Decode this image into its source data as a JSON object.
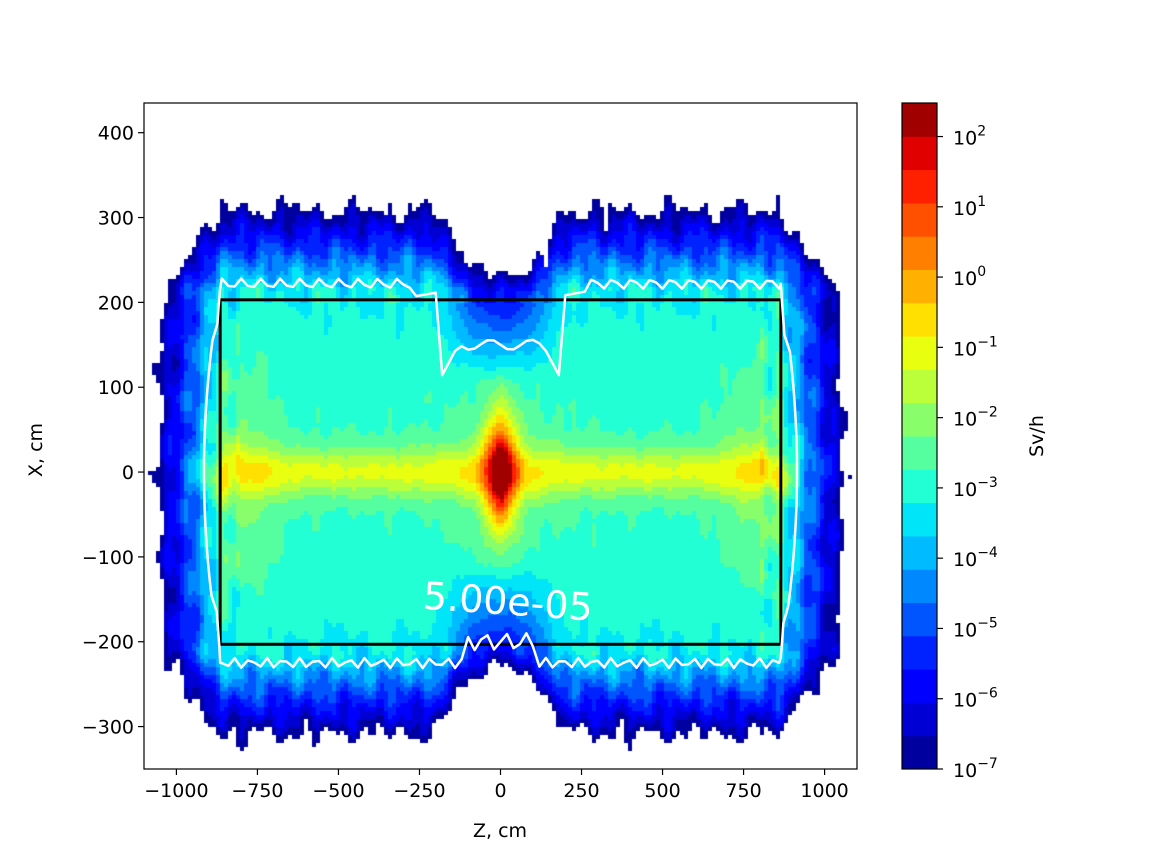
{
  "chart_data": {
    "type": "heatmap",
    "subtype": "filled-contour",
    "title": "",
    "xlabel": "Z, cm",
    "ylabel": "X, cm",
    "xlim": [
      -1100,
      1100
    ],
    "ylim": [
      -350,
      435
    ],
    "xticks": [
      -1000,
      -750,
      -500,
      -250,
      0,
      250,
      500,
      750,
      1000
    ],
    "xtick_labels": [
      "−1000",
      "−750",
      "−500",
      "−250",
      "0",
      "250",
      "500",
      "750",
      "1000"
    ],
    "yticks": [
      -300,
      -200,
      -100,
      0,
      100,
      200,
      300,
      400
    ],
    "ytick_labels": [
      "−300",
      "−200",
      "−100",
      "0",
      "100",
      "200",
      "300",
      "400"
    ],
    "colormap": "jet",
    "scale": "log",
    "colorbar": {
      "label": "Sv/h",
      "range": [
        1e-07,
        300
      ],
      "ticks": [
        1e-07,
        1e-06,
        1e-05,
        0.0001,
        0.001,
        0.01,
        0.1,
        1,
        10,
        100
      ],
      "tick_bases": [
        "10",
        "10",
        "10",
        "10",
        "10",
        "10",
        "10",
        "10",
        "10",
        "10"
      ],
      "tick_exponents": [
        "−7",
        "−6",
        "−5",
        "−4",
        "−3",
        "−2",
        "−1",
        "0",
        "1",
        "2"
      ],
      "levels": 19,
      "colors": [
        "#00009f",
        "#0000d5",
        "#0000ff",
        "#0022ff",
        "#0055ff",
        "#0088ff",
        "#00bbff",
        "#00e5f8",
        "#22ffd5",
        "#55ff9f",
        "#88ff6a",
        "#bbff3a",
        "#e8ff10",
        "#ffe000",
        "#ffb000",
        "#ff8000",
        "#ff5000",
        "#ff2000",
        "#e00000",
        "#a00000"
      ]
    },
    "rectangle": {
      "z": [
        -865,
        865
      ],
      "x": [
        -203,
        203
      ],
      "color": "#000000"
    },
    "contour_line": {
      "level": 5e-05,
      "label": "5.00e-05",
      "color": "#ffffff"
    },
    "field": {
      "blue_extent_z": 1090,
      "base_half_height_x": 300,
      "beam_half_width_x": 28,
      "peak_location": [
        0,
        0
      ],
      "peak_value": 200
    }
  }
}
